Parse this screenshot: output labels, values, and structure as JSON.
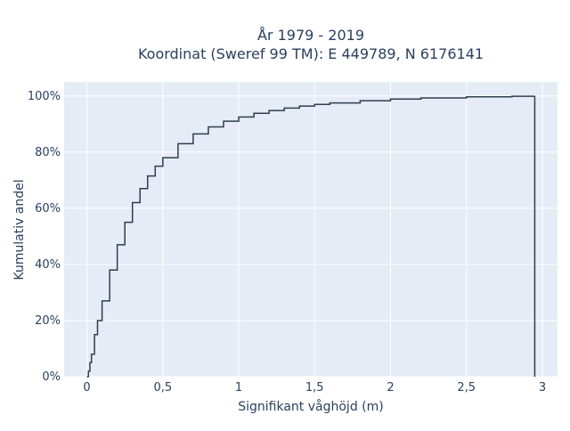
{
  "chart_data": {
    "type": "line",
    "line_shape": "step",
    "title_lines": [
      "År 1979 - 2019",
      "Koordinat (Sweref 99 TM): E 449789, N 6176141"
    ],
    "xlabel": "Signifikant våghöjd (m)",
    "ylabel": "Kumulativ andel",
    "xlim": [
      -0.15,
      3.1
    ],
    "ylim": [
      0,
      1.05
    ],
    "x_ticks": [
      0,
      0.5,
      1,
      1.5,
      2,
      2.5,
      3
    ],
    "x_tick_labels": [
      "0",
      "0,5",
      "1",
      "1,5",
      "2",
      "2,5",
      "3"
    ],
    "y_ticks": [
      0,
      0.2,
      0.4,
      0.6,
      0.8,
      1.0
    ],
    "y_tick_labels": [
      "0%",
      "20%",
      "40%",
      "60%",
      "80%",
      "100%"
    ],
    "grid": true,
    "background_color": "#e5ecf6",
    "grid_color": "#ffffff",
    "line_color": "#2f3e4e",
    "series": [
      {
        "x": [
          0.0,
          0.01,
          0.02,
          0.03,
          0.05,
          0.07,
          0.1,
          0.15,
          0.2,
          0.25,
          0.3,
          0.35,
          0.4,
          0.45,
          0.5,
          0.6,
          0.7,
          0.8,
          0.9,
          1.0,
          1.1,
          1.2,
          1.3,
          1.4,
          1.5,
          1.6,
          1.8,
          2.0,
          2.2,
          2.5,
          2.8,
          2.95,
          2.95
        ],
        "y": [
          0.0,
          0.02,
          0.05,
          0.08,
          0.15,
          0.2,
          0.27,
          0.38,
          0.47,
          0.55,
          0.62,
          0.67,
          0.715,
          0.75,
          0.78,
          0.83,
          0.865,
          0.89,
          0.91,
          0.925,
          0.938,
          0.948,
          0.957,
          0.964,
          0.97,
          0.975,
          0.983,
          0.989,
          0.993,
          0.997,
          0.999,
          1.0,
          0.0
        ]
      }
    ]
  }
}
